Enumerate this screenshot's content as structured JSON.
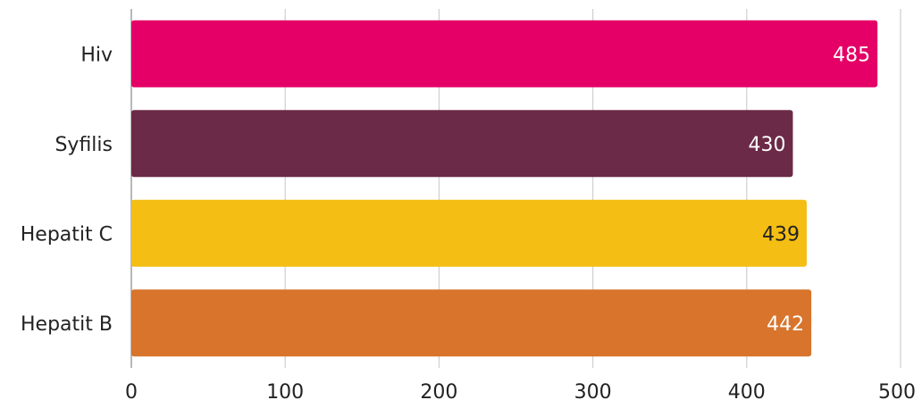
{
  "chart_data": {
    "type": "bar",
    "orientation": "horizontal",
    "title": "",
    "xlabel": "",
    "ylabel": "",
    "categories": [
      "Hiv",
      "Syfilis",
      "Hepatit C",
      "Hepatit B"
    ],
    "values": [
      485,
      430,
      439,
      442
    ],
    "bar_colors": [
      "#e40066",
      "#6b2a47",
      "#f4be14",
      "#d8742c"
    ],
    "label_colors": [
      "#ffffff",
      "#ffffff",
      "#222222",
      "#ffffff"
    ],
    "xlim": [
      0,
      500
    ],
    "xticks": [
      0,
      100,
      200,
      300,
      400,
      500
    ],
    "grid": "vertical",
    "legend": "none"
  }
}
